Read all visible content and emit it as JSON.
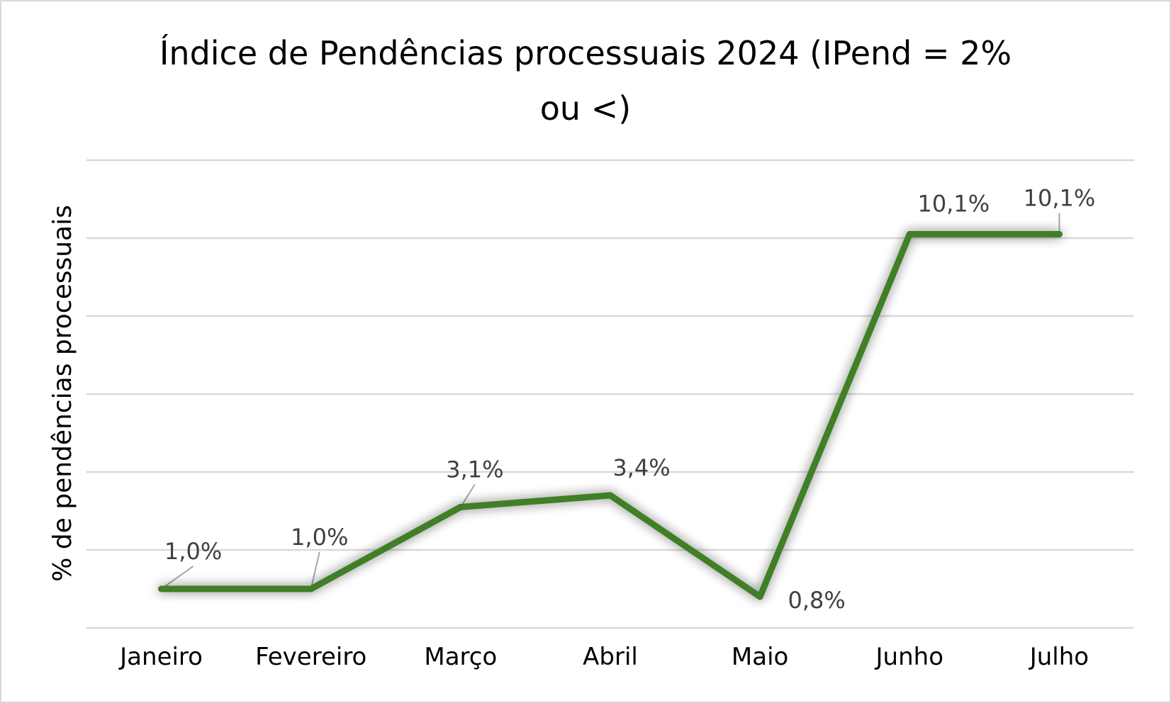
{
  "chart_data": {
    "type": "line",
    "title_line1": "Índice de Pendências processuais 2024 (IPend = 2%",
    "title_line2": "ou <)",
    "ylabel": "% de pendências processuais",
    "xlabel": "",
    "categories": [
      "Janeiro",
      "Fevereiro",
      "Março",
      "Abril",
      "Maio",
      "Junho",
      "Julho"
    ],
    "series": [
      {
        "values": [
          1.0,
          1.0,
          3.1,
          3.4,
          0.8,
          10.1,
          10.1
        ],
        "labels": [
          "1,0%",
          "1,0%",
          "3,1%",
          "3,4%",
          "0,8%",
          "10,1%",
          "10,1%"
        ],
        "color": "#3f7f26"
      }
    ],
    "ylim": [
      0,
      12
    ],
    "gridlines": [
      0,
      2,
      4,
      6,
      8,
      10,
      12
    ],
    "grid": true,
    "legend": "none",
    "grid_color": "#d9d9d9"
  }
}
